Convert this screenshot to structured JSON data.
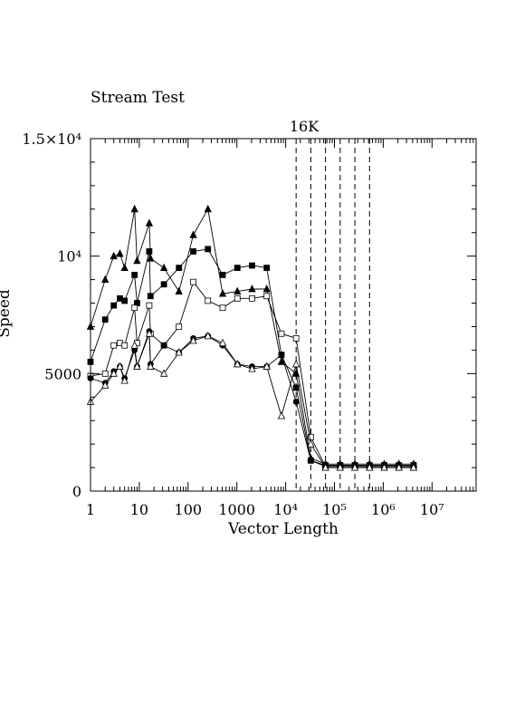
{
  "chart_data": {
    "type": "line",
    "title": "Stream Test",
    "xlabel": "Vector Length",
    "ylabel": "Speed",
    "x_scale": "log",
    "xlim": [
      1,
      80000000
    ],
    "ylim": [
      0,
      15000
    ],
    "x_ticks": [
      {
        "value": 1,
        "label": "1"
      },
      {
        "value": 10,
        "label": "10"
      },
      {
        "value": 100,
        "label": "100"
      },
      {
        "value": 1000,
        "label": "1000"
      },
      {
        "value": 10000,
        "label": "10⁴"
      },
      {
        "value": 100000,
        "label": "10⁵"
      },
      {
        "value": 1000000,
        "label": "10⁶"
      },
      {
        "value": 10000000,
        "label": "10⁷"
      }
    ],
    "y_ticks": [
      {
        "value": 0,
        "label": "0"
      },
      {
        "value": 5000,
        "label": "5000"
      },
      {
        "value": 10000,
        "label": "10⁴"
      },
      {
        "value": 15000,
        "label": "1.5×10⁴"
      }
    ],
    "annotation": {
      "text": "16K",
      "x": 16384
    },
    "vlines": [
      16384,
      32768,
      65536,
      131072,
      262144,
      524288
    ],
    "grid": false,
    "series": [
      {
        "marker": "filled-triangle",
        "x": [
          1,
          2,
          3,
          4,
          5,
          8,
          9,
          16,
          17,
          32,
          65,
          128,
          255,
          512,
          1024,
          2048,
          4096,
          8192,
          16384,
          32768,
          65536,
          131072,
          262144,
          524288,
          1048576,
          2097152,
          4194304
        ],
        "y": [
          7000,
          9000,
          10000,
          10100,
          9500,
          12000,
          9800,
          11400,
          9900,
          9500,
          8500,
          10900,
          12000,
          8400,
          8500,
          8600,
          8600,
          5500,
          5000,
          1400,
          1150,
          1150,
          1150,
          1150,
          1150,
          1150,
          1150
        ]
      },
      {
        "marker": "filled-square",
        "x": [
          1,
          2,
          3,
          4,
          5,
          8,
          9,
          16,
          17,
          32,
          65,
          128,
          255,
          512,
          1024,
          2048,
          4096,
          8192,
          16384,
          32768,
          65536,
          131072,
          262144,
          524288,
          1048576,
          2097152,
          4194304
        ],
        "y": [
          5500,
          7300,
          7900,
          8200,
          8100,
          9200,
          8000,
          10200,
          8300,
          8800,
          9500,
          10200,
          10300,
          9200,
          9500,
          9600,
          9500,
          5800,
          4400,
          1300,
          1100,
          1100,
          1100,
          1100,
          1100,
          1100,
          1100
        ]
      },
      {
        "marker": "open-square",
        "x": [
          1,
          2,
          3,
          4,
          5,
          8,
          9,
          16,
          17,
          32,
          65,
          128,
          255,
          512,
          1024,
          2048,
          4096,
          8192,
          16384,
          32768,
          65536,
          131072,
          262144,
          524288,
          1048576,
          2097152,
          4194304
        ],
        "y": [
          4900,
          5000,
          6200,
          6300,
          6200,
          7800,
          6300,
          7900,
          6700,
          6200,
          7000,
          8900,
          8100,
          7800,
          8200,
          8200,
          8300,
          6700,
          6500,
          2300,
          1050,
          1050,
          1050,
          1050,
          1050,
          1050,
          1050
        ]
      },
      {
        "marker": "filled-circle",
        "x": [
          1,
          2,
          3,
          4,
          5,
          8,
          9,
          16,
          17,
          32,
          65,
          128,
          255,
          512,
          1024,
          2048,
          4096,
          8192,
          16384,
          32768,
          65536,
          131072,
          262144,
          524288,
          1048576,
          2097152,
          4194304
        ],
        "y": [
          4800,
          4600,
          5100,
          5300,
          4800,
          6000,
          5300,
          6800,
          5400,
          6200,
          5900,
          6500,
          6600,
          6200,
          5400,
          5300,
          5300,
          5800,
          3800,
          1300,
          1050,
          1050,
          1050,
          1050,
          1050,
          1050,
          1050
        ]
      },
      {
        "marker": "open-triangle",
        "x": [
          1,
          2,
          3,
          4,
          5,
          8,
          9,
          16,
          17,
          32,
          65,
          128,
          255,
          512,
          1024,
          2048,
          4096,
          8192,
          16384,
          32768,
          65536,
          131072,
          262144,
          524288,
          1048576,
          2097152,
          4194304
        ],
        "y": [
          3800,
          4500,
          5000,
          5300,
          4700,
          6200,
          5300,
          6700,
          5300,
          5000,
          5900,
          6400,
          6600,
          6300,
          5400,
          5200,
          5300,
          3200,
          5400,
          2000,
          1000,
          1000,
          1000,
          1000,
          1000,
          1000,
          1000
        ]
      }
    ]
  }
}
